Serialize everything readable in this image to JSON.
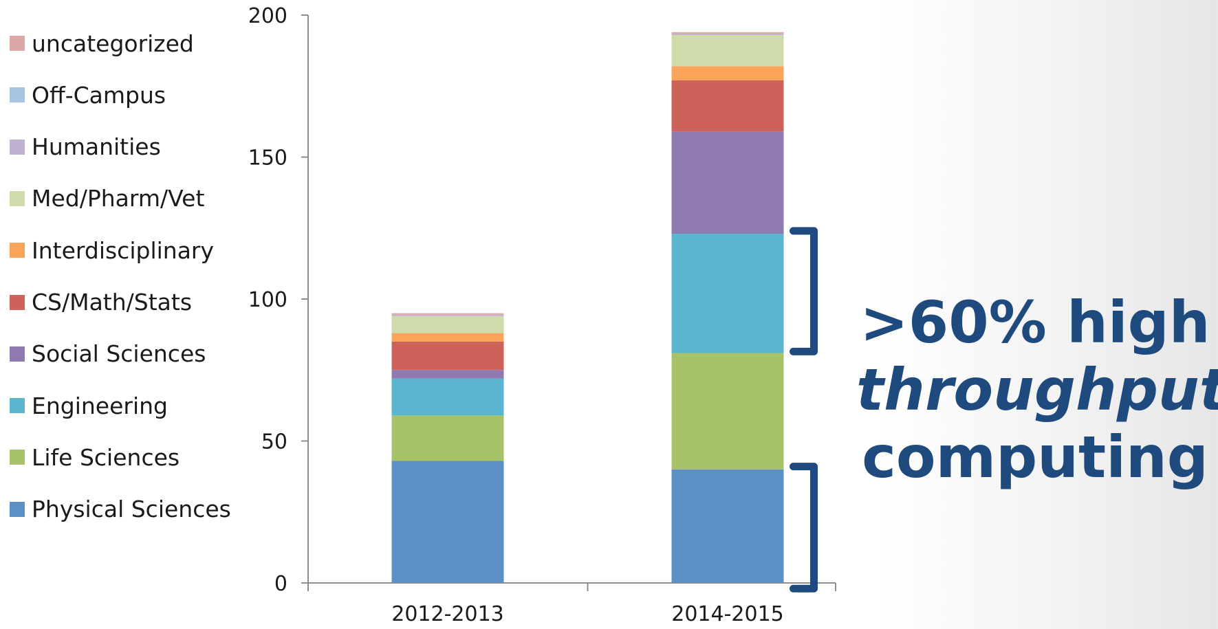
{
  "chart_data": {
    "type": "bar",
    "stacked": true,
    "categories": [
      "2012-2013",
      "2014-2015"
    ],
    "ylim": [
      0,
      200
    ],
    "yticks": [
      0,
      50,
      100,
      150,
      200
    ],
    "series": [
      {
        "name": "Physical Sciences",
        "color": "#5b8fc6",
        "values": [
          43,
          40
        ]
      },
      {
        "name": "Life Sciences",
        "color": "#a8c26a",
        "values": [
          16,
          41
        ]
      },
      {
        "name": "Engineering",
        "color": "#5ab6cf",
        "values": [
          13,
          42
        ]
      },
      {
        "name": "Social Sciences",
        "color": "#8e79b0",
        "values": [
          3,
          36
        ]
      },
      {
        "name": "CS/Math/Stats",
        "color": "#cc6259",
        "values": [
          10,
          18
        ]
      },
      {
        "name": "Interdisciplinary",
        "color": "#f9a45a",
        "values": [
          3,
          5
        ]
      },
      {
        "name": "Med/Pharm/Vet",
        "color": "#cfdbab",
        "values": [
          6,
          11
        ]
      },
      {
        "name": "Humanities",
        "color": "#c0b1d2",
        "values": [
          0.5,
          0.5
        ]
      },
      {
        "name": "Off-Campus",
        "color": "#a7c4e2",
        "values": [
          0,
          0
        ]
      },
      {
        "name": "uncategorized",
        "color": "#dca7a5",
        "values": [
          0.5,
          0.5
        ]
      }
    ],
    "legend_position": "left",
    "grid": false
  },
  "callout": {
    "line1": ">60% high",
    "line2": "throughput",
    "line3": "computing",
    "color": "#1f4a7e"
  }
}
